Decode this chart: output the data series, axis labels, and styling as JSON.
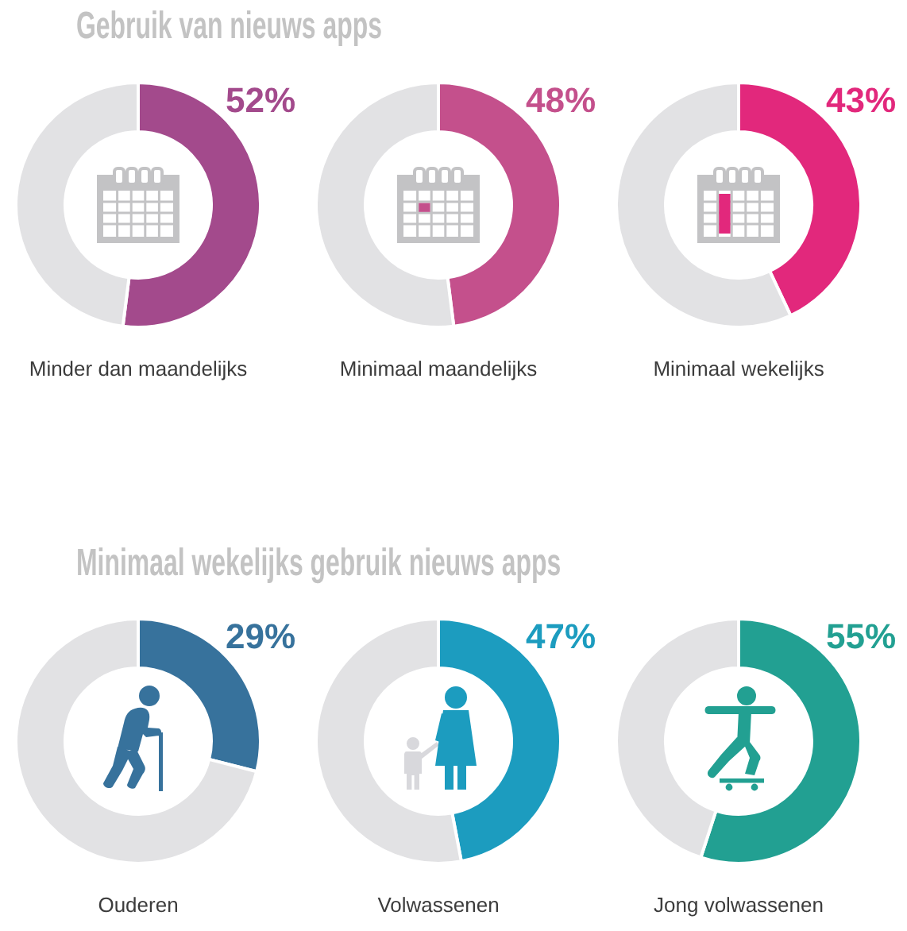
{
  "chart_data": [
    {
      "type": "donut",
      "title": "Gebruik van nieuws apps",
      "xlabel": "Minder dan maandelijks",
      "categories": [
        null,
        null
      ],
      "values": [
        52,
        48
      ],
      "colors": [
        "#a34a8c",
        "#e2e2e4"
      ],
      "value_labels": [
        "52%",
        null
      ]
    },
    {
      "type": "donut",
      "xlabel": "Minimaal maandelijks",
      "categories": [
        null,
        null
      ],
      "values": [
        48,
        52
      ],
      "colors": [
        "#c4508c",
        "#e2e2e4"
      ],
      "value_labels": [
        "48%",
        null
      ]
    },
    {
      "type": "donut",
      "xlabel": "Minimaal wekelijks",
      "categories": [
        null,
        null
      ],
      "values": [
        43,
        57
      ],
      "colors": [
        "#e2287c",
        "#e2e2e4"
      ],
      "value_labels": [
        "43%",
        null
      ]
    },
    {
      "type": "donut",
      "title": "Minimaal wekelijks gebruik nieuws apps",
      "xlabel": "Ouderen",
      "categories": [
        null,
        null
      ],
      "values": [
        29,
        71
      ],
      "colors": [
        "#37729c",
        "#e2e2e4"
      ],
      "value_labels": [
        "29%",
        null
      ]
    },
    {
      "type": "donut",
      "xlabel": "Volwassenen",
      "categories": [
        null,
        null
      ],
      "values": [
        47,
        53
      ],
      "colors": [
        "#1c9cbf",
        "#e2e2e4"
      ],
      "value_labels": [
        "47%",
        null
      ]
    },
    {
      "type": "donut",
      "xlabel": "Jong volwassenen",
      "categories": [
        null,
        null
      ],
      "values": [
        55,
        45
      ],
      "colors": [
        "#22a092",
        "#e2e2e4"
      ],
      "value_labels": [
        "55%",
        null
      ]
    }
  ]
}
